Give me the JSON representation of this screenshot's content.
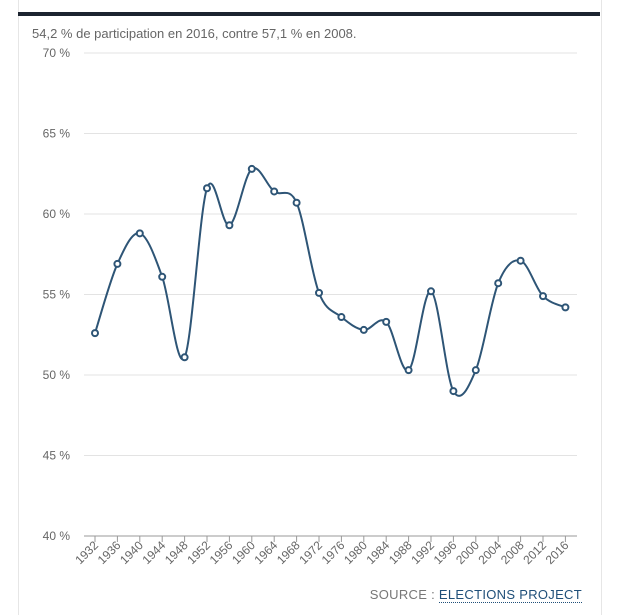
{
  "subtitle": "54,2 % de participation en 2016, contre 57,1 % en 2008.",
  "source": {
    "prefix": "SOURCE : ",
    "link_label": "ELECTIONS PROJECT"
  },
  "colors": {
    "line": "#2e5576",
    "grid": "#e3e3e3",
    "axis": "#999999",
    "topbar": "#1c2430"
  },
  "chart_data": {
    "type": "line",
    "title": "",
    "xlabel": "",
    "ylabel": "",
    "ylim": [
      40,
      70
    ],
    "yticks": [
      40,
      45,
      50,
      55,
      60,
      65,
      70
    ],
    "ytick_labels": [
      "40 %",
      "45 %",
      "50 %",
      "55 %",
      "60 %",
      "65 %",
      "70 %"
    ],
    "grid": true,
    "categories": [
      "1932",
      "1936",
      "1940",
      "1944",
      "1948",
      "1952",
      "1956",
      "1960",
      "1964",
      "1968",
      "1972",
      "1976",
      "1980",
      "1984",
      "1988",
      "1992",
      "1996",
      "2000",
      "2004",
      "2008",
      "2012",
      "2016"
    ],
    "values": [
      52.6,
      56.9,
      58.8,
      56.1,
      51.1,
      61.6,
      59.3,
      62.8,
      61.4,
      60.7,
      55.1,
      53.6,
      52.8,
      53.3,
      50.3,
      55.2,
      49.0,
      50.3,
      55.7,
      57.1,
      54.9,
      54.2
    ]
  }
}
